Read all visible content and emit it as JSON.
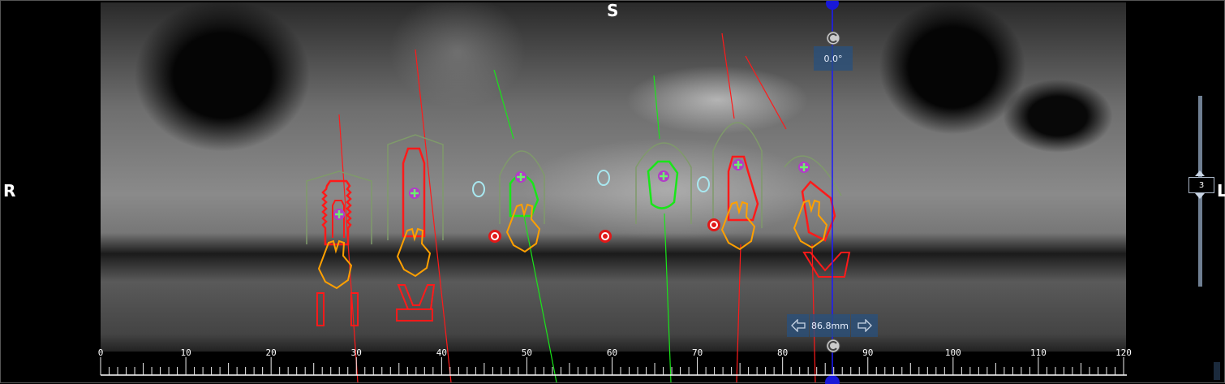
{
  "orientation": {
    "top": "S",
    "left": "R",
    "right": "L"
  },
  "rotation": {
    "angle_label": "0.0°",
    "icon": "rotate-icon"
  },
  "position": {
    "value_label": "86.8mm",
    "prev_icon": "arrow-left-icon",
    "next_icon": "arrow-right-icon"
  },
  "slice_slider": {
    "value": "3",
    "up_icon": "arrow-up-icon",
    "down_icon": "arrow-down-icon"
  },
  "ruler": {
    "min": 0,
    "max": 120,
    "major_step": 10,
    "minor_step": 1,
    "unit": "mm",
    "labels": [
      "0",
      "10",
      "20",
      "30",
      "40",
      "50",
      "60",
      "70",
      "80",
      "90",
      "100",
      "110",
      "120"
    ]
  },
  "colors": {
    "implant": "#ff1a1a",
    "crown": "#ffa000",
    "implant_selected": "#19e619",
    "bone_zone": "#7f9a6a",
    "marker": "#b23cc8",
    "cursor_line": "#1a1aff",
    "nerve_ring": "#a8e8f0"
  }
}
